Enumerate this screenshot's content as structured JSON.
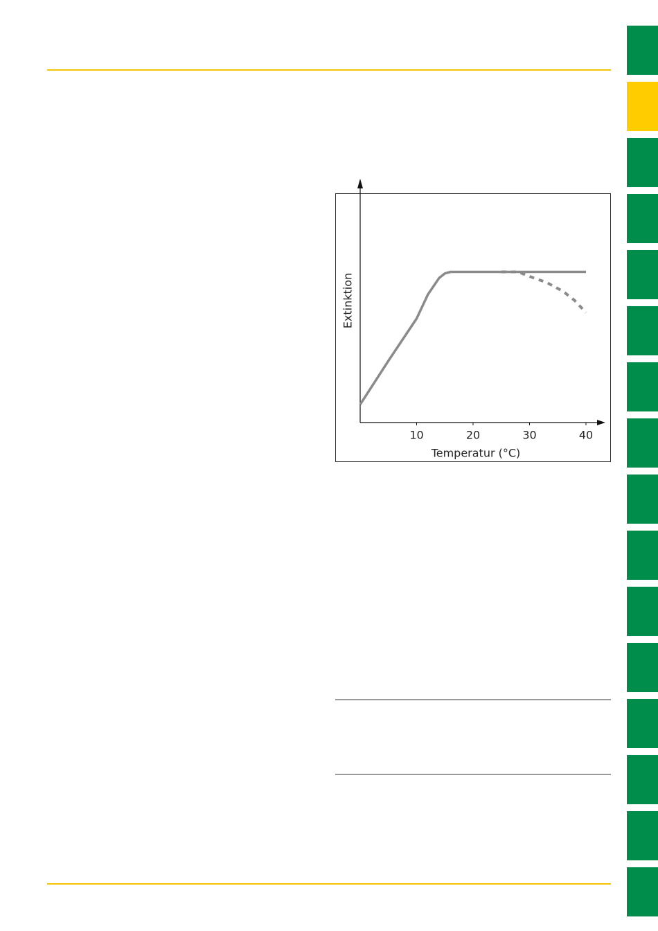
{
  "chart_data": {
    "type": "line",
    "xlabel": "Temperatur (°C)",
    "ylabel": "Extinktion",
    "xlim": [
      0,
      40
    ],
    "ylim": [
      0,
      1.6
    ],
    "xticks": [
      10,
      20,
      30,
      40
    ],
    "series": [
      {
        "color": "#8a8a8a",
        "dashed": false,
        "x": [
          0,
          5,
          10,
          12,
          14,
          15,
          16,
          40
        ],
        "values": [
          0.12,
          0.41,
          0.69,
          0.85,
          0.96,
          0.99,
          1,
          1
        ]
      },
      {
        "color": "#8a8a8a",
        "dashed": true,
        "x": [
          25,
          28,
          30,
          33,
          36,
          38,
          40
        ],
        "values": [
          1,
          1,
          0.97,
          0.93,
          0.87,
          0.81,
          0.73
        ]
      }
    ]
  }
}
